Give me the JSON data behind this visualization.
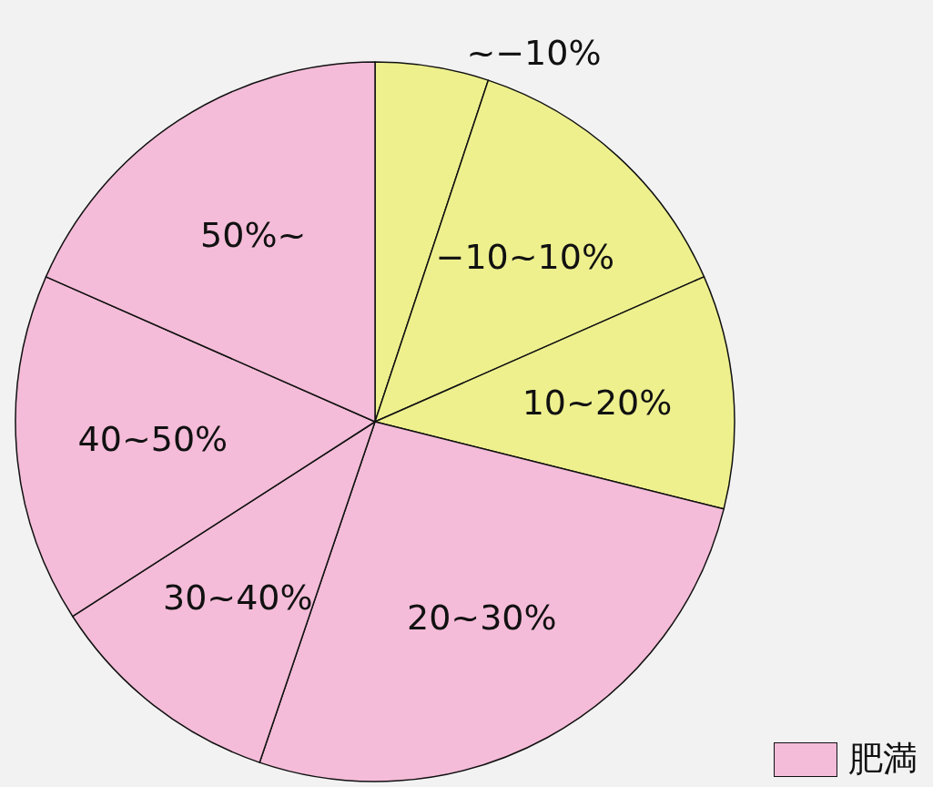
{
  "chart_data": {
    "type": "pie",
    "categories": [
      "~−10%",
      "−10~10%",
      "10~20%",
      "20~30%",
      "30~40%",
      "40~50%",
      "50%~"
    ],
    "values": [
      5.1,
      13.3,
      10.5,
      26.3,
      10.7,
      15.7,
      18.4
    ],
    "colors": [
      "#eef08e",
      "#eef08e",
      "#eef08e",
      "#f4bcd8",
      "#f4bcd8",
      "#f4bcd8",
      "#f4bcd8"
    ],
    "annotations": [
      "肥満"
    ]
  }
}
